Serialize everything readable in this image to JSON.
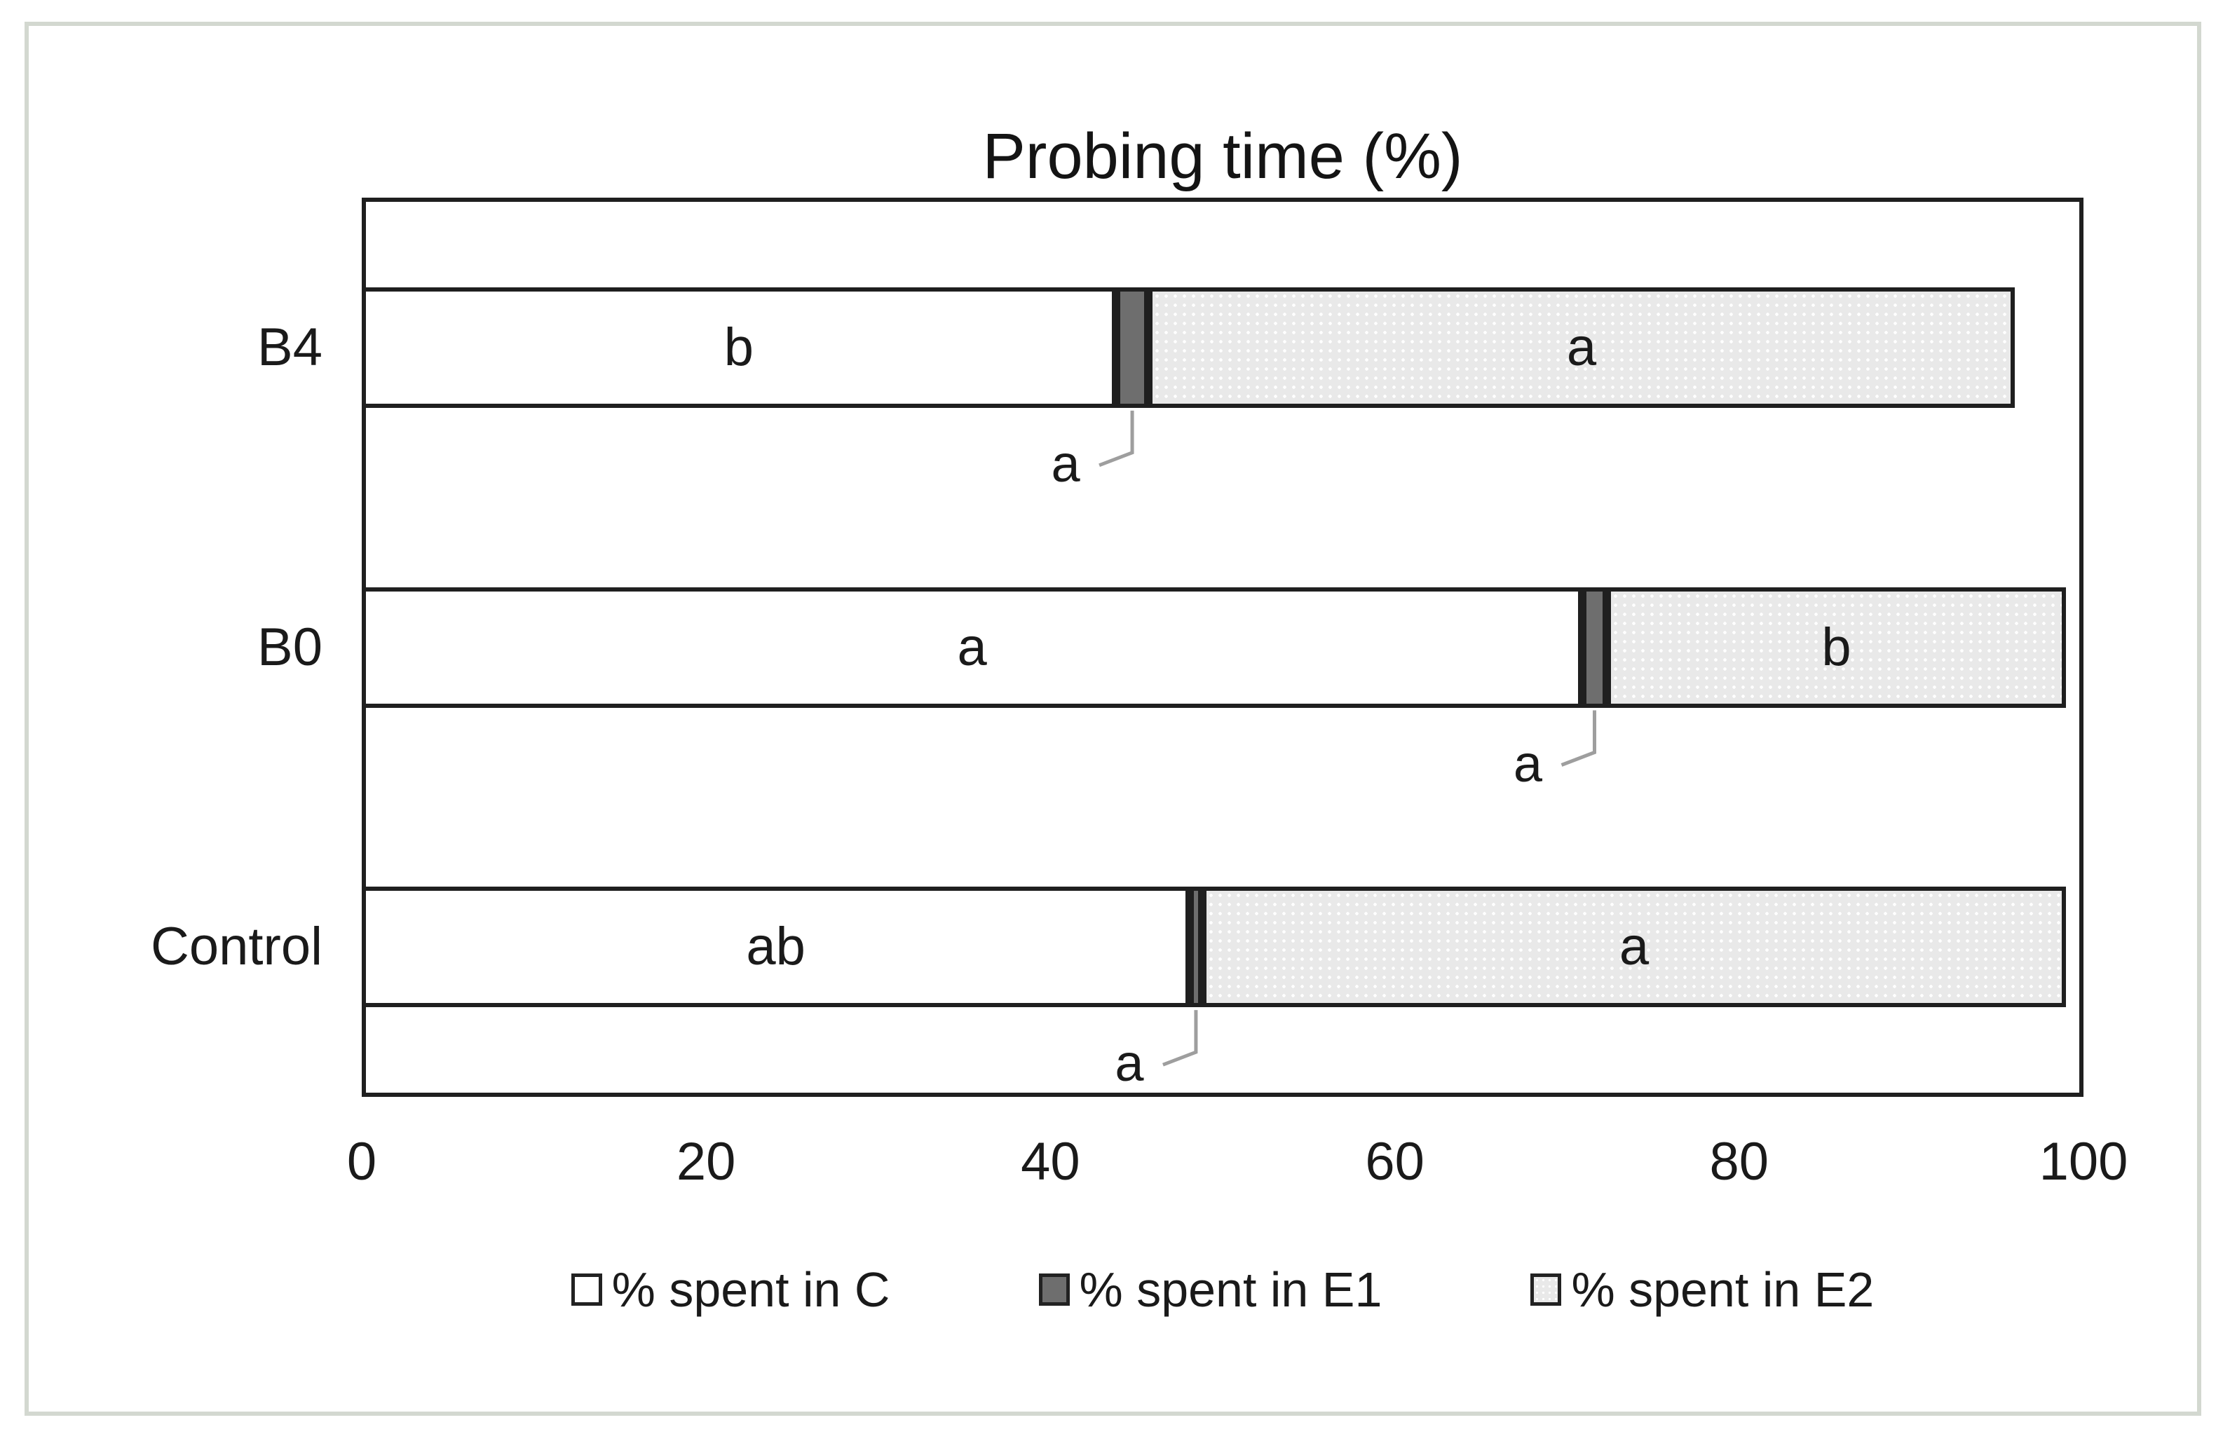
{
  "chart_data": {
    "type": "bar",
    "orientation": "horizontal",
    "stacked": true,
    "title": "Probing time (%)",
    "categories": [
      "B4",
      "B0",
      "Control"
    ],
    "series": [
      {
        "name": "% spent in C",
        "values": [
          43.8,
          70.9,
          48.1
        ],
        "letters": [
          "b",
          "a",
          "ab"
        ],
        "letter_placement": "inside"
      },
      {
        "name": "% spent in E1",
        "values": [
          1.9,
          1.4,
          0.7
        ],
        "letters": [
          "a",
          "a",
          "a"
        ],
        "letter_placement": "callout-below"
      },
      {
        "name": "% spent in E2",
        "values": [
          50.3,
          26.7,
          50.2
        ],
        "letters": [
          "a",
          "b",
          "a"
        ],
        "letter_placement": "inside"
      }
    ],
    "xlim": [
      0,
      100
    ],
    "x_ticks": [
      "0",
      "20",
      "40",
      "60",
      "80",
      "100"
    ],
    "grid": "off",
    "legend": [
      "% spent in C",
      "% spent in E1",
      "% spent in E2"
    ],
    "legend_position": "bottom",
    "colors": {
      "segment_c_fill": "#ffffff",
      "segment_e1_fill": "#6e6e6e",
      "segment_e2_fill": "#e9e9e9 with white dot pattern",
      "segment_border": "#1f1f1f",
      "leader_line": "#9e9e9e",
      "figure_border": "#d3d8d0",
      "text": "#1a1a1a"
    }
  }
}
